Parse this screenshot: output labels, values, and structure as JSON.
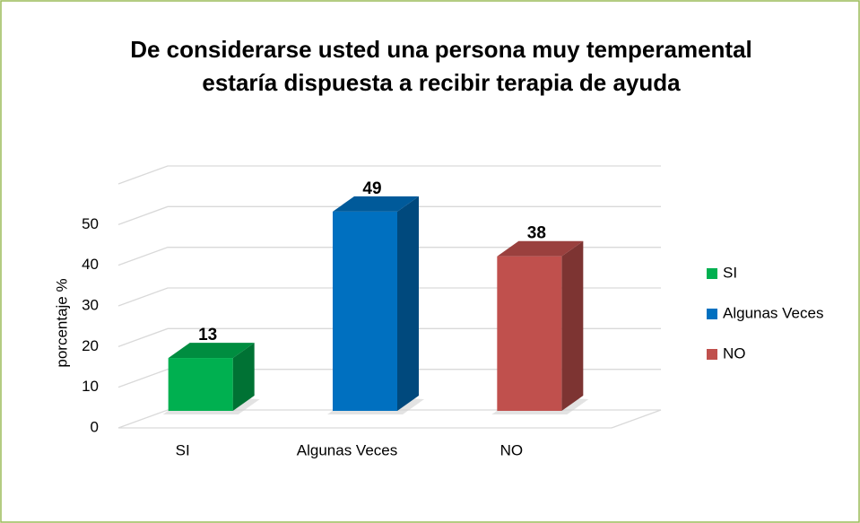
{
  "chart_data": {
    "type": "bar3d",
    "title": [
      "De considerarse usted una persona muy temperamental",
      "estaría dispuesta a recibir terapia de ayuda"
    ],
    "ylabel": "porcentaje %",
    "categories": [
      "SI",
      "Algunas Veces",
      "NO"
    ],
    "values": [
      13,
      49,
      38
    ],
    "colors": [
      "#00b050",
      "#0070c0",
      "#c0504d"
    ],
    "ylim": [
      0,
      60
    ],
    "yticks": [
      0,
      10,
      20,
      30,
      40,
      50
    ],
    "grid": true,
    "legend": "right"
  }
}
